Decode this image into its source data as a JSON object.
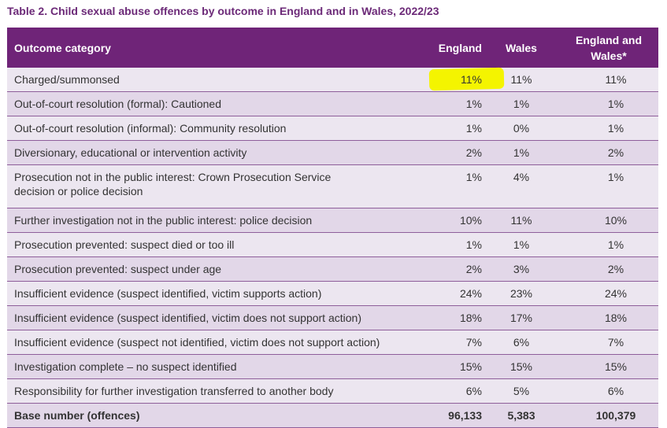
{
  "caption": "Table 2. Child sexual abuse offences by outcome in England and in Wales, 2022/23",
  "headers": {
    "category": "Outcome category",
    "england": "England",
    "wales": "Wales",
    "england_and_wales_line1": "England and",
    "england_and_wales_line2": "Wales*"
  },
  "rows": [
    {
      "category": "Charged/summonsed",
      "england": "11%",
      "wales": "11%",
      "england_and_wales": "11%",
      "highlighted": true
    },
    {
      "category": "Out-of-court resolution (formal): Cautioned",
      "england": "1%",
      "wales": "1%",
      "england_and_wales": "1%"
    },
    {
      "category": "Out-of-court resolution (informal): Community resolution",
      "england": "1%",
      "wales": "0%",
      "england_and_wales": "1%"
    },
    {
      "category": "Diversionary, educational or intervention activity",
      "england": "2%",
      "wales": "1%",
      "england_and_wales": "2%"
    },
    {
      "category_line1": "Prosecution not in the public interest: Crown Prosecution Service",
      "category_line2": "decision or police decision",
      "england": "1%",
      "wales": "4%",
      "england_and_wales": "1%"
    },
    {
      "category": "Further investigation not in the public interest: police decision",
      "england": "10%",
      "wales": "11%",
      "england_and_wales": "10%"
    },
    {
      "category": "Prosecution prevented: suspect died or too ill",
      "england": "1%",
      "wales": "1%",
      "england_and_wales": "1%"
    },
    {
      "category": "Prosecution prevented: suspect under age",
      "england": "2%",
      "wales": "3%",
      "england_and_wales": "2%"
    },
    {
      "category": "Insufficient evidence (suspect identified, victim supports action)",
      "england": "24%",
      "wales": "23%",
      "england_and_wales": "24%"
    },
    {
      "category": "Insufficient evidence (suspect identified, victim does not support action)",
      "england": "18%",
      "wales": "17%",
      "england_and_wales": "18%"
    },
    {
      "category": "Insufficient evidence (suspect not identified, victim does not support action)",
      "england": "7%",
      "wales": "6%",
      "england_and_wales": "7%"
    },
    {
      "category": "Investigation complete – no suspect identified",
      "england": "15%",
      "wales": "15%",
      "england_and_wales": "15%"
    },
    {
      "category": "Responsibility for further investigation transferred to another body",
      "england": "6%",
      "wales": "5%",
      "england_and_wales": "6%"
    }
  ],
  "base": {
    "category": "Base number (offences)",
    "england": "96,133",
    "wales": "5,383",
    "england_and_wales": "100,379"
  },
  "colors": {
    "header_bg": "#6f2478",
    "caption_text": "#6c2a78",
    "row_light": "#ece6f0",
    "row_dark": "#e2d7e8",
    "highlight": "#f4f400"
  }
}
